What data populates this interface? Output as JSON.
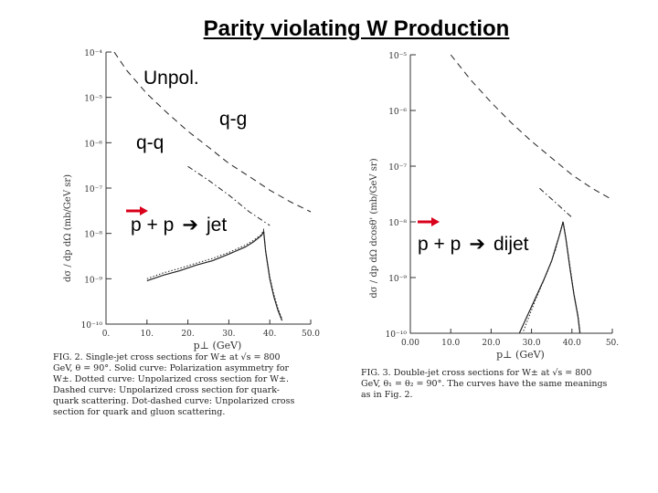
{
  "title": "Parity violating W Production",
  "annotations": {
    "unpol": "Unpol.",
    "qg": "q-g",
    "qq": "q-q",
    "jet_prefix": "p + p",
    "jet_suffix": "jet",
    "dijet_prefix": "p + p",
    "dijet_suffix": "dijet"
  },
  "colors": {
    "arrow": "#d9001b",
    "ink": "#222222"
  },
  "chart_data": [
    {
      "type": "line",
      "panel": "FIG. 2",
      "xlabel": "p⊥ (GeV)",
      "ylabel": "dσ / dp dΩ (mb/GeV sr)",
      "xlim": [
        0,
        50
      ],
      "ylog": true,
      "ylim": [
        1e-10,
        0.0001
      ],
      "x_ticks": [
        {
          "v": 0,
          "t": "0."
        },
        {
          "v": 10,
          "t": "10."
        },
        {
          "v": 20,
          "t": "20."
        },
        {
          "v": 30,
          "t": "30."
        },
        {
          "v": 40,
          "t": "40."
        },
        {
          "v": 50,
          "t": "50.0"
        }
      ],
      "y_ticks": [
        {
          "e": -4,
          "t": "10⁻⁴"
        },
        {
          "e": -5,
          "t": "10⁻⁵"
        },
        {
          "e": -6,
          "t": "10⁻⁶"
        },
        {
          "e": -7,
          "t": "10⁻⁷"
        },
        {
          "e": -8,
          "t": "10⁻⁸"
        },
        {
          "e": -9,
          "t": "10⁻⁹"
        },
        {
          "e": -10,
          "t": "10⁻¹⁰"
        }
      ],
      "series": [
        {
          "style": "dashed",
          "x": [
            2,
            5,
            10,
            15,
            20,
            25,
            30,
            35,
            40,
            45,
            50
          ],
          "y": [
            0.0001,
            4e-05,
            1.2e-05,
            4.5e-06,
            1.8e-06,
            8e-07,
            3.5e-07,
            1.8e-07,
            9e-08,
            5e-08,
            3e-08
          ]
        },
        {
          "style": "dotdash",
          "x": [
            20,
            25,
            30,
            35,
            40
          ],
          "y": [
            3e-07,
            1.5e-07,
            7e-08,
            3e-08,
            1.5e-08
          ]
        },
        {
          "style": "solid",
          "x": [
            10,
            14,
            18,
            22,
            26,
            30,
            34,
            36,
            38,
            38.5,
            39,
            40,
            41,
            42,
            43
          ],
          "y": [
            9e-10,
            1.2e-09,
            1.5e-09,
            2e-09,
            2.5e-09,
            3.5e-09,
            5e-09,
            6.5e-09,
            9e-09,
            1.1e-08,
            4e-09,
            1e-09,
            4e-10,
            2e-10,
            1.2e-10
          ]
        },
        {
          "style": "dotted",
          "x": [
            10,
            14,
            18,
            22,
            26,
            30,
            34,
            36,
            38,
            38.5,
            39,
            40,
            41,
            42,
            43
          ],
          "y": [
            1e-09,
            1.35e-09,
            1.7e-09,
            2.2e-09,
            2.8e-09,
            3.8e-09,
            5.5e-09,
            7e-09,
            9.5e-09,
            1.2e-08,
            4.2e-09,
            1.1e-09,
            4.5e-10,
            2.2e-10,
            1.3e-10
          ]
        }
      ],
      "caption_lines": [
        "FIG. 2.  Single-jet cross sections for W± at √s = 800",
        "GeV, θ = 90°.  Solid curve:  Polarization asymmetry for",
        "W±.  Dotted curve:  Unpolarized cross section for W±.",
        "Dashed curve:  Unpolarized cross section for quark-",
        "quark scattering.  Dot-dashed curve:  Unpolarized cross",
        "section for quark and gluon scattering."
      ]
    },
    {
      "type": "line",
      "panel": "FIG. 3",
      "xlabel": "p⊥ (GeV)",
      "ylabel": "dσ / dp dΩ dcosθ' (mb/GeV sr)",
      "xlim": [
        0,
        50
      ],
      "ylog": true,
      "ylim": [
        1e-10,
        1e-05
      ],
      "x_ticks": [
        {
          "v": 0,
          "t": "0.00"
        },
        {
          "v": 10,
          "t": "10.0"
        },
        {
          "v": 20,
          "t": "20.0"
        },
        {
          "v": 30,
          "t": "30.0"
        },
        {
          "v": 40,
          "t": "40.0"
        },
        {
          "v": 50,
          "t": "50."
        }
      ],
      "y_ticks": [
        {
          "e": -5,
          "t": "10⁻⁵"
        },
        {
          "e": -6,
          "t": "10⁻⁶"
        },
        {
          "e": -7,
          "t": "10⁻⁷"
        },
        {
          "e": -8,
          "t": "10⁻⁸"
        },
        {
          "e": -9,
          "t": "10⁻⁹"
        },
        {
          "e": -10,
          "t": "10⁻¹⁰"
        }
      ],
      "series": [
        {
          "style": "dashed",
          "x": [
            10,
            15,
            20,
            25,
            30,
            35,
            40,
            45,
            50
          ],
          "y": [
            1e-05,
            3.5e-06,
            1.4e-06,
            6e-07,
            2.8e-07,
            1.4e-07,
            7e-08,
            4e-08,
            2.5e-08
          ]
        },
        {
          "style": "dotdash",
          "x": [
            32,
            36,
            40
          ],
          "y": [
            4e-08,
            2.2e-08,
            1.2e-08
          ]
        },
        {
          "style": "solid",
          "x": [
            27,
            30,
            33,
            35,
            36,
            37,
            37.8,
            38.5,
            39.5,
            40.5,
            41.5,
            42
          ],
          "y": [
            1e-10,
            3e-10,
            9e-10,
            2e-09,
            3.5e-09,
            6e-09,
            1e-08,
            5e-09,
            1.5e-09,
            5e-10,
            2e-10,
            1e-10
          ]
        },
        {
          "style": "dotted",
          "x": [
            28,
            31,
            34,
            36,
            37,
            37.8,
            38.5,
            39.5,
            40.5,
            41.5,
            42
          ],
          "y": [
            1.1e-10,
            4e-10,
            1.3e-09,
            3.2e-09,
            6.2e-09,
            1.02e-08,
            5.2e-09,
            1.6e-09,
            5.2e-10,
            2.1e-10,
            1.1e-10
          ]
        }
      ],
      "caption_lines": [
        "FIG. 3.  Double-jet cross sections for W± at √s = 800",
        "GeV, θ₁ = θ₂ = 90°.  The curves have the same meanings",
        "as in Fig. 2."
      ]
    }
  ]
}
